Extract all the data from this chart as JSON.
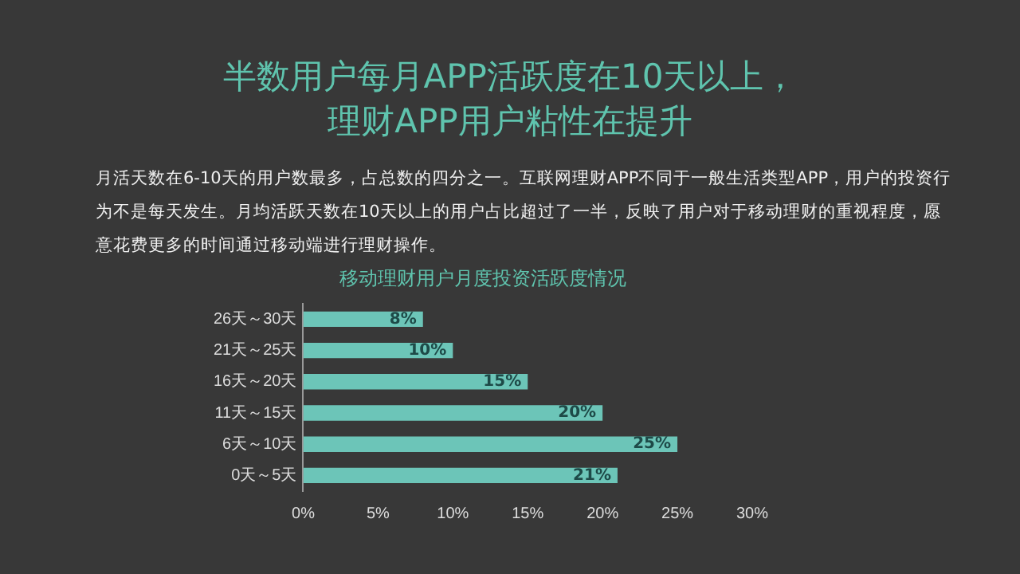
{
  "chart_data": {
    "type": "bar",
    "orientation": "horizontal",
    "title": "半数用户每月APP活跃度在10天以上，理财APP用户粘性在提升",
    "subtitle": "月活天数在6-10天的用户数最多，占总数的四分之一。互联网理财APP不同于一般生活类型APP，用户的投资行为不是每天发生。月均活跃天数在10天以上的用户占比超过了一半，反映了用户对于移动理财的重视程度，愿意花费更多的时间通过移动端进行理财操作。",
    "annotations": [
      "移动理财用户月度投资活跃度情况"
    ],
    "categories": [
      "26天～30天",
      "21天～25天",
      "16天～20天",
      "11天～15天",
      "6天～10天",
      "0天～5天"
    ],
    "values": [
      8,
      10,
      15,
      20,
      25,
      21
    ],
    "value_labels": [
      "8%",
      "10%",
      "15%",
      "20%",
      "25%",
      "21%"
    ],
    "color": "#6cc5b8",
    "xlim": [
      0,
      30
    ],
    "xticks": [
      {
        "value": 0,
        "label": "0%"
      },
      {
        "value": 5,
        "label": "5%"
      },
      {
        "value": 10,
        "label": "10%"
      },
      {
        "value": 15,
        "label": "15%"
      },
      {
        "value": 20,
        "label": "20%"
      },
      {
        "value": 25,
        "label": "25%"
      },
      {
        "value": 30,
        "label": "30%"
      }
    ],
    "grid": false,
    "legend": false
  }
}
